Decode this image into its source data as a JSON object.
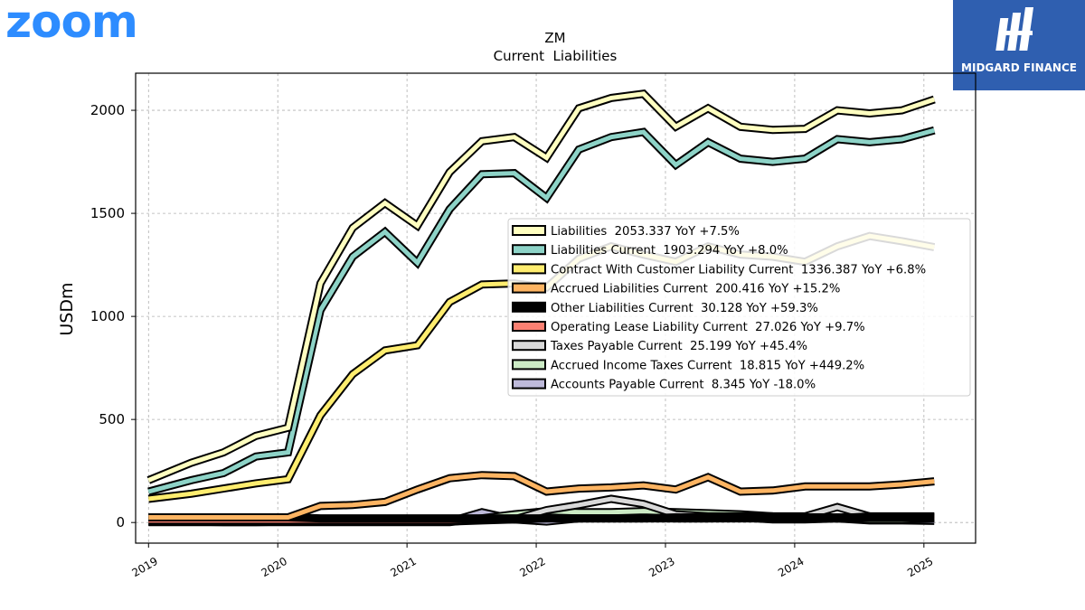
{
  "branding": {
    "left_logo": "zoom",
    "left_logo_color": "#2D8CFF",
    "right_logo": "MIDGARD FINANCE",
    "right_logo_bg": "#2f5fb0"
  },
  "chart_data": {
    "type": "line",
    "title": "ZM",
    "subtitle": "Current  Liabilities",
    "ylabel": "USDm",
    "xlabel": "",
    "xlim": [
      2018.9,
      2025.4
    ],
    "ylim": [
      -100,
      2180
    ],
    "x_ticks": [
      2019,
      2020,
      2021,
      2022,
      2023,
      2024,
      2025
    ],
    "x_tick_labels": [
      "2019",
      "2020",
      "2021",
      "2022",
      "2023",
      "2024",
      "2025"
    ],
    "y_ticks": [
      0,
      500,
      1000,
      1500,
      2000
    ],
    "y_tick_labels": [
      "0",
      "500",
      "1000",
      "1500",
      "2000"
    ],
    "grid": true,
    "legend_position": "right-center",
    "x": [
      2019.0,
      2019.33,
      2019.58,
      2019.83,
      2020.08,
      2020.33,
      2020.58,
      2020.83,
      2021.08,
      2021.33,
      2021.58,
      2021.83,
      2022.08,
      2022.33,
      2022.58,
      2022.83,
      2023.08,
      2023.33,
      2023.58,
      2023.83,
      2024.08,
      2024.33,
      2024.58,
      2024.83,
      2025.08
    ],
    "series": [
      {
        "name": "Liabilities",
        "legend_label": "Liabilities  2053.337 YoY +7.5%",
        "color": "#ffffc0",
        "values": [
          205,
          290,
          340,
          420,
          460,
          1160,
          1430,
          1550,
          1440,
          1700,
          1850,
          1870,
          1770,
          2010,
          2060,
          2080,
          1920,
          2010,
          1920,
          1905,
          1910,
          2000,
          1985,
          2000,
          2053
        ]
      },
      {
        "name": "Liabilities Current",
        "legend_label": "Liabilities Current  1903.294 YoY +8.0%",
        "color": "#8dd3c7",
        "values": [
          150,
          205,
          240,
          320,
          340,
          1030,
          1290,
          1410,
          1260,
          1520,
          1690,
          1695,
          1575,
          1810,
          1870,
          1895,
          1735,
          1845,
          1765,
          1750,
          1765,
          1860,
          1845,
          1860,
          1903
        ]
      },
      {
        "name": "Contract With Customer Liability Current",
        "legend_label": "Contract With Customer Liability Current  1336.387 YoY +6.8%",
        "color": "#ffed6f",
        "values": [
          115,
          140,
          165,
          190,
          210,
          520,
          720,
          835,
          860,
          1070,
          1155,
          1160,
          1140,
          1280,
          1340,
          1300,
          1265,
          1340,
          1300,
          1290,
          1265,
          1340,
          1390,
          1365,
          1336
        ]
      },
      {
        "name": "Accrued Liabilities Current",
        "legend_label": "Accrued Liabilities Current  200.416 YoY +15.2%",
        "color": "#fdb462",
        "values": [
          25,
          25,
          25,
          25,
          25,
          80,
          85,
          100,
          160,
          215,
          230,
          225,
          150,
          165,
          170,
          180,
          160,
          220,
          150,
          155,
          175,
          175,
          175,
          185,
          200
        ]
      },
      {
        "name": "Other Liabilities Current",
        "legend_label": "Other Liabilities Current  30.128 YoY +59.3%",
        "color": "#000000",
        "values": [
          25,
          25,
          25,
          25,
          25,
          20,
          20,
          20,
          20,
          20,
          20,
          20,
          20,
          20,
          20,
          20,
          20,
          20,
          20,
          20,
          20,
          20,
          30,
          30,
          30
        ]
      },
      {
        "name": "Operating Lease Liability Current",
        "legend_label": "Operating Lease Liability Current  27.026 YoY +9.7%",
        "color": "#fb8072",
        "values": [
          10,
          10,
          10,
          10,
          10,
          10,
          10,
          10,
          10,
          10,
          15,
          15,
          20,
          20,
          20,
          20,
          25,
          25,
          25,
          25,
          25,
          25,
          25,
          25,
          27
        ]
      },
      {
        "name": "Taxes Payable Current",
        "legend_label": "Taxes Payable Current  25.199 YoY +45.4%",
        "color": "#d9d9d9",
        "values": [
          5,
          5,
          5,
          5,
          5,
          5,
          5,
          5,
          5,
          5,
          10,
          15,
          60,
          85,
          115,
          90,
          40,
          30,
          30,
          30,
          30,
          75,
          30,
          25,
          25
        ]
      },
      {
        "name": "Accrued Income Taxes Current",
        "legend_label": "Accrued Income Taxes Current  18.815 YoY +449.2%",
        "color": "#ccebc5",
        "values": [
          2,
          2,
          2,
          2,
          2,
          2,
          2,
          2,
          2,
          2,
          20,
          40,
          55,
          50,
          50,
          55,
          50,
          45,
          40,
          30,
          25,
          20,
          15,
          15,
          19
        ]
      },
      {
        "name": "Accounts Payable Current",
        "legend_label": "Accounts Payable Current  8.345 YoY -18.0%",
        "color": "#bebada",
        "values": [
          5,
          5,
          2,
          2,
          5,
          5,
          15,
          15,
          10,
          5,
          50,
          15,
          5,
          20,
          25,
          30,
          20,
          20,
          25,
          15,
          15,
          20,
          10,
          10,
          8
        ]
      }
    ]
  }
}
